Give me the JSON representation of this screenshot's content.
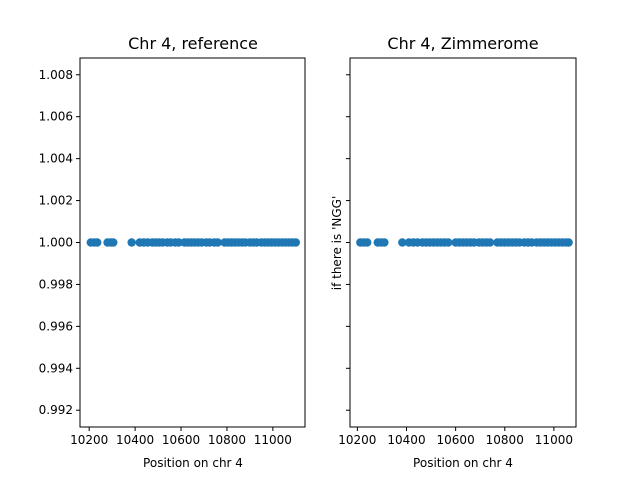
{
  "chart_data": [
    {
      "type": "scatter",
      "title": "Chr 4, reference",
      "xlabel": "Position on chr 4",
      "ylabel": "",
      "xlim": [
        10160,
        11140
      ],
      "ylim": [
        0.9912,
        1.0088
      ],
      "x_ticks": [
        10200,
        10400,
        10600,
        10800,
        11000
      ],
      "x_tick_labels": [
        "10200",
        "10400",
        "10600",
        "10800",
        "11000"
      ],
      "y_ticks": [
        0.992,
        0.994,
        0.996,
        0.998,
        1.0,
        1.002,
        1.004,
        1.006,
        1.008
      ],
      "y_tick_labels": [
        "0.992",
        "0.994",
        "0.996",
        "0.998",
        "1.000",
        "1.002",
        "1.004",
        "1.006",
        "1.008"
      ],
      "grid": false,
      "marker_color": "#1f77b4",
      "x": [
        10207,
        10222,
        10235,
        10280,
        10295,
        10305,
        10385,
        10420,
        10438,
        10455,
        10475,
        10490,
        10505,
        10520,
        10540,
        10555,
        10575,
        10590,
        10615,
        10630,
        10645,
        10660,
        10675,
        10690,
        10710,
        10725,
        10745,
        10760,
        10790,
        10805,
        10820,
        10835,
        10850,
        10865,
        10880,
        10900,
        10915,
        10930,
        10950,
        10965,
        10980,
        10995,
        11010,
        11025,
        11040,
        11055,
        11070,
        11085,
        11100
      ],
      "y": [
        1.0,
        1.0,
        1.0,
        1.0,
        1.0,
        1.0,
        1.0,
        1.0,
        1.0,
        1.0,
        1.0,
        1.0,
        1.0,
        1.0,
        1.0,
        1.0,
        1.0,
        1.0,
        1.0,
        1.0,
        1.0,
        1.0,
        1.0,
        1.0,
        1.0,
        1.0,
        1.0,
        1.0,
        1.0,
        1.0,
        1.0,
        1.0,
        1.0,
        1.0,
        1.0,
        1.0,
        1.0,
        1.0,
        1.0,
        1.0,
        1.0,
        1.0,
        1.0,
        1.0,
        1.0,
        1.0,
        1.0,
        1.0,
        1.0
      ]
    },
    {
      "type": "scatter",
      "title": "Chr 4, Zimmerome",
      "xlabel": "Position on chr 4",
      "ylabel": "if there is 'NGG'",
      "xlim": [
        10170,
        11090
      ],
      "ylim": [
        0.9912,
        1.0088
      ],
      "x_ticks": [
        10200,
        10400,
        10600,
        10800,
        11000
      ],
      "x_tick_labels": [
        "10200",
        "10400",
        "10600",
        "10800",
        "11000"
      ],
      "y_ticks": [
        0.992,
        0.994,
        0.996,
        0.998,
        1.0,
        1.002,
        1.004,
        1.006,
        1.008
      ],
      "y_tick_labels": [],
      "grid": false,
      "marker_color": "#1f77b4",
      "x": [
        10212,
        10226,
        10240,
        10283,
        10297,
        10310,
        10383,
        10410,
        10428,
        10445,
        10465,
        10480,
        10495,
        10510,
        10525,
        10540,
        10555,
        10570,
        10600,
        10615,
        10630,
        10645,
        10660,
        10675,
        10695,
        10710,
        10725,
        10740,
        10770,
        10785,
        10800,
        10815,
        10830,
        10845,
        10860,
        10880,
        10895,
        10910,
        10930,
        10945,
        10960,
        10975,
        10990,
        11005,
        11020,
        11035,
        11050,
        11060
      ],
      "y": [
        1.0,
        1.0,
        1.0,
        1.0,
        1.0,
        1.0,
        1.0,
        1.0,
        1.0,
        1.0,
        1.0,
        1.0,
        1.0,
        1.0,
        1.0,
        1.0,
        1.0,
        1.0,
        1.0,
        1.0,
        1.0,
        1.0,
        1.0,
        1.0,
        1.0,
        1.0,
        1.0,
        1.0,
        1.0,
        1.0,
        1.0,
        1.0,
        1.0,
        1.0,
        1.0,
        1.0,
        1.0,
        1.0,
        1.0,
        1.0,
        1.0,
        1.0,
        1.0,
        1.0,
        1.0,
        1.0,
        1.0,
        1.0
      ]
    }
  ]
}
